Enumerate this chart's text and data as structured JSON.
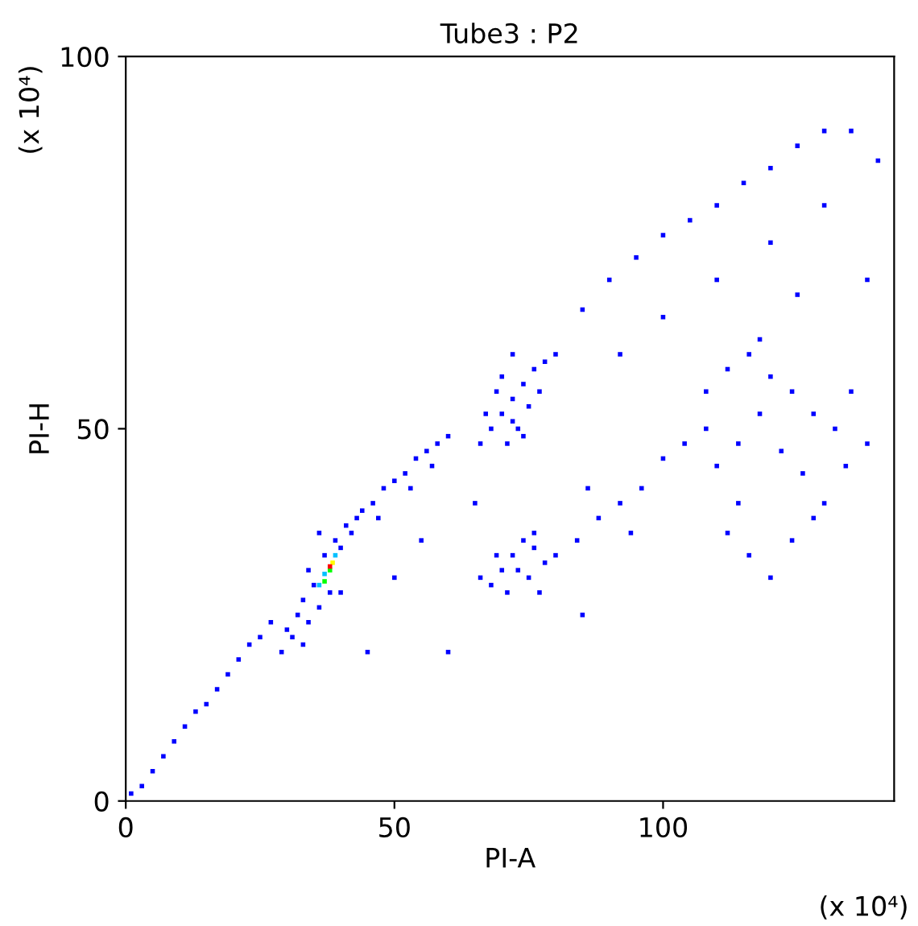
{
  "chart_data": {
    "type": "scatter",
    "title": "Tube3 : P2",
    "xlabel": "PI-A",
    "ylabel": "PI-H",
    "annotations": [
      "(x 10⁴)",
      "(x 10⁴)"
    ],
    "xlim": [
      0,
      143
    ],
    "ylim": [
      0,
      100
    ],
    "xticks": [
      0,
      50,
      100
    ],
    "yticks": [
      0,
      50,
      100
    ],
    "grid": false,
    "marker": "square",
    "series": [
      {
        "color": "#0000ff",
        "x": [
          1,
          3,
          5,
          7,
          9,
          11,
          13,
          15,
          17,
          19,
          21,
          23,
          25,
          27,
          30,
          32,
          33,
          34,
          35,
          36,
          37,
          39,
          40,
          41,
          42,
          38,
          34,
          31,
          29,
          43,
          36,
          40,
          33,
          44,
          46,
          48,
          50,
          52,
          54,
          56,
          58,
          60,
          47,
          53,
          57,
          66,
          68,
          70,
          72,
          74,
          76,
          73,
          71,
          75,
          69,
          77,
          72,
          70,
          74,
          67,
          78,
          72,
          68,
          70,
          72,
          74,
          76,
          78,
          75,
          71,
          73,
          77,
          69,
          76,
          66,
          80,
          84,
          88,
          92,
          96,
          100,
          104,
          86,
          94,
          108,
          112,
          116,
          120,
          124,
          128,
          132,
          110,
          114,
          118,
          122,
          126,
          130,
          112,
          116,
          120,
          124,
          128,
          134,
          138,
          114,
          108,
          135,
          118,
          80,
          85,
          90,
          95,
          100,
          105,
          110,
          115,
          120,
          125,
          130,
          135,
          140,
          100,
          110,
          92,
          120,
          130,
          138,
          125,
          60,
          50,
          65,
          55,
          45,
          85
        ],
        "values": [
          1,
          2,
          4,
          6,
          8,
          10,
          12,
          13,
          15,
          17,
          19,
          21,
          22,
          24,
          23,
          25,
          27,
          24,
          29,
          26,
          33,
          35,
          34,
          37,
          36,
          28,
          31,
          22,
          20,
          38,
          36,
          28,
          21,
          39,
          40,
          42,
          43,
          44,
          46,
          47,
          48,
          49,
          38,
          42,
          45,
          48,
          50,
          52,
          54,
          56,
          58,
          50,
          48,
          53,
          55,
          55,
          60,
          57,
          49,
          52,
          59,
          51,
          29,
          31,
          33,
          35,
          34,
          32,
          30,
          28,
          31,
          28,
          33,
          36,
          30,
          33,
          35,
          38,
          40,
          42,
          46,
          48,
          42,
          36,
          55,
          58,
          60,
          57,
          55,
          52,
          50,
          45,
          48,
          52,
          47,
          44,
          40,
          36,
          33,
          30,
          35,
          38,
          45,
          48,
          40,
          50,
          55,
          62,
          60,
          66,
          70,
          73,
          76,
          78,
          80,
          83,
          85,
          88,
          90,
          90,
          86,
          65,
          70,
          60,
          75,
          80,
          70,
          68,
          20,
          30,
          40,
          35,
          20,
          25
        ]
      },
      {
        "color": "#00c0ff",
        "x": [
          36,
          39,
          37
        ],
        "values": [
          29,
          33,
          30.5
        ]
      },
      {
        "color": "#00ff00",
        "x": [
          38,
          37
        ],
        "values": [
          31,
          29.5
        ]
      },
      {
        "color": "#ffff00",
        "x": [
          38.5
        ],
        "values": [
          32
        ]
      },
      {
        "color": "#ff0000",
        "x": [
          38
        ],
        "values": [
          31.5
        ]
      }
    ]
  }
}
